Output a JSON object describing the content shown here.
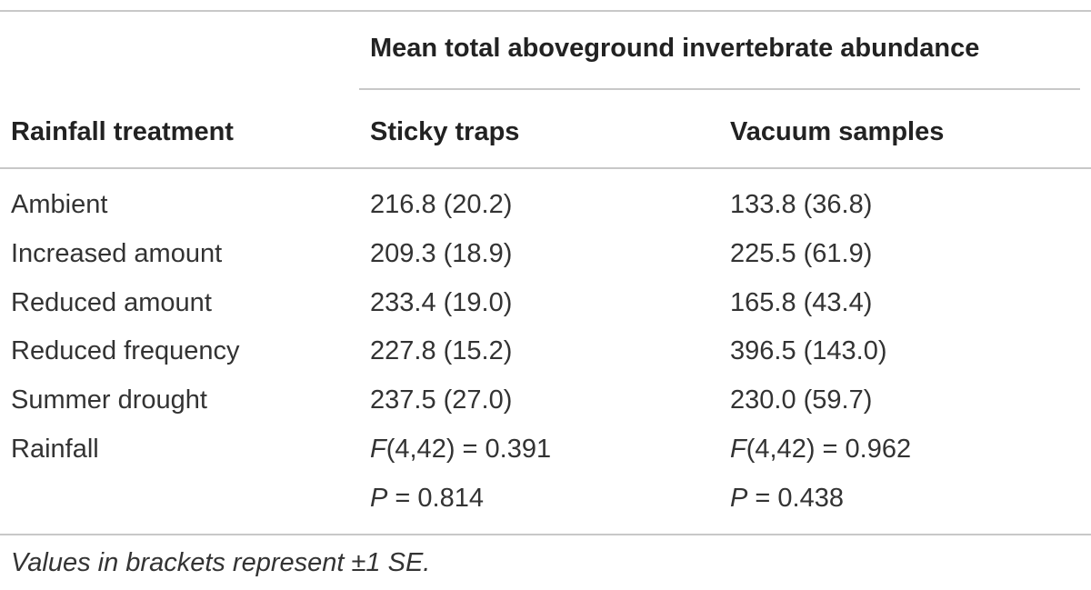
{
  "table": {
    "group_header": "Mean total aboveground invertebrate abundance",
    "columns": [
      "Rainfall treatment",
      "Sticky traps",
      "Vacuum samples"
    ],
    "rows": [
      [
        "Ambient",
        "216.8 (20.2)",
        "133.8 (36.8)"
      ],
      [
        "Increased amount",
        "209.3 (18.9)",
        "225.5 (61.9)"
      ],
      [
        "Reduced amount",
        "233.4 (19.0)",
        "165.8 (43.4)"
      ],
      [
        "Reduced frequency",
        "227.8 (15.2)",
        "396.5 (143.0)"
      ],
      [
        "Summer drought",
        "237.5 (27.0)",
        "230.0 (59.7)"
      ]
    ],
    "test": {
      "label": "Rainfall",
      "cells": [
        {
          "f": {
            "symbol": "F",
            "text": "(4,42) = 0.391"
          },
          "p": {
            "symbol": "P",
            "text": " = 0.814"
          }
        },
        {
          "f": {
            "symbol": "F",
            "text": "(4,42) = 0.962"
          },
          "p": {
            "symbol": "P",
            "text": " = 0.438"
          }
        }
      ]
    }
  },
  "footnote": "Values in brackets represent ±1 SE."
}
